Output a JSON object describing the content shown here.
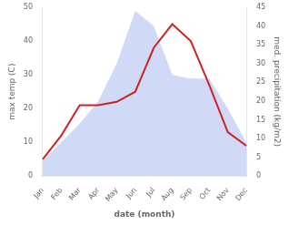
{
  "chart_data": {
    "type": "line",
    "categories": [
      "Jan",
      "Feb",
      "Mar",
      "Apr",
      "May",
      "Jun",
      "Jul",
      "Aug",
      "Sep",
      "Oct",
      "Nov",
      "Dec"
    ],
    "series": [
      {
        "type": "area",
        "color": "#aabbee",
        "axis": "y2",
        "values": [
          4,
          9,
          14,
          20,
          30,
          44,
          40,
          27,
          26,
          26,
          18,
          9
        ]
      },
      {
        "type": "line",
        "color": "#cc2222",
        "values": [
          5,
          12,
          21,
          21,
          22,
          25,
          38,
          45,
          40,
          27,
          13,
          9
        ]
      }
    ],
    "xlabel": "date (month)",
    "ylabel": "max temp (C)",
    "y2label": "med. precipitation (kg/m2)",
    "ylim": [
      0,
      50
    ],
    "yticks": [
      0,
      10,
      20,
      30,
      40,
      50
    ],
    "y2lim": [
      0,
      45
    ],
    "y2ticks": [
      0,
      5,
      10,
      15,
      20,
      25,
      30,
      35,
      40,
      45
    ],
    "grid": false
  }
}
